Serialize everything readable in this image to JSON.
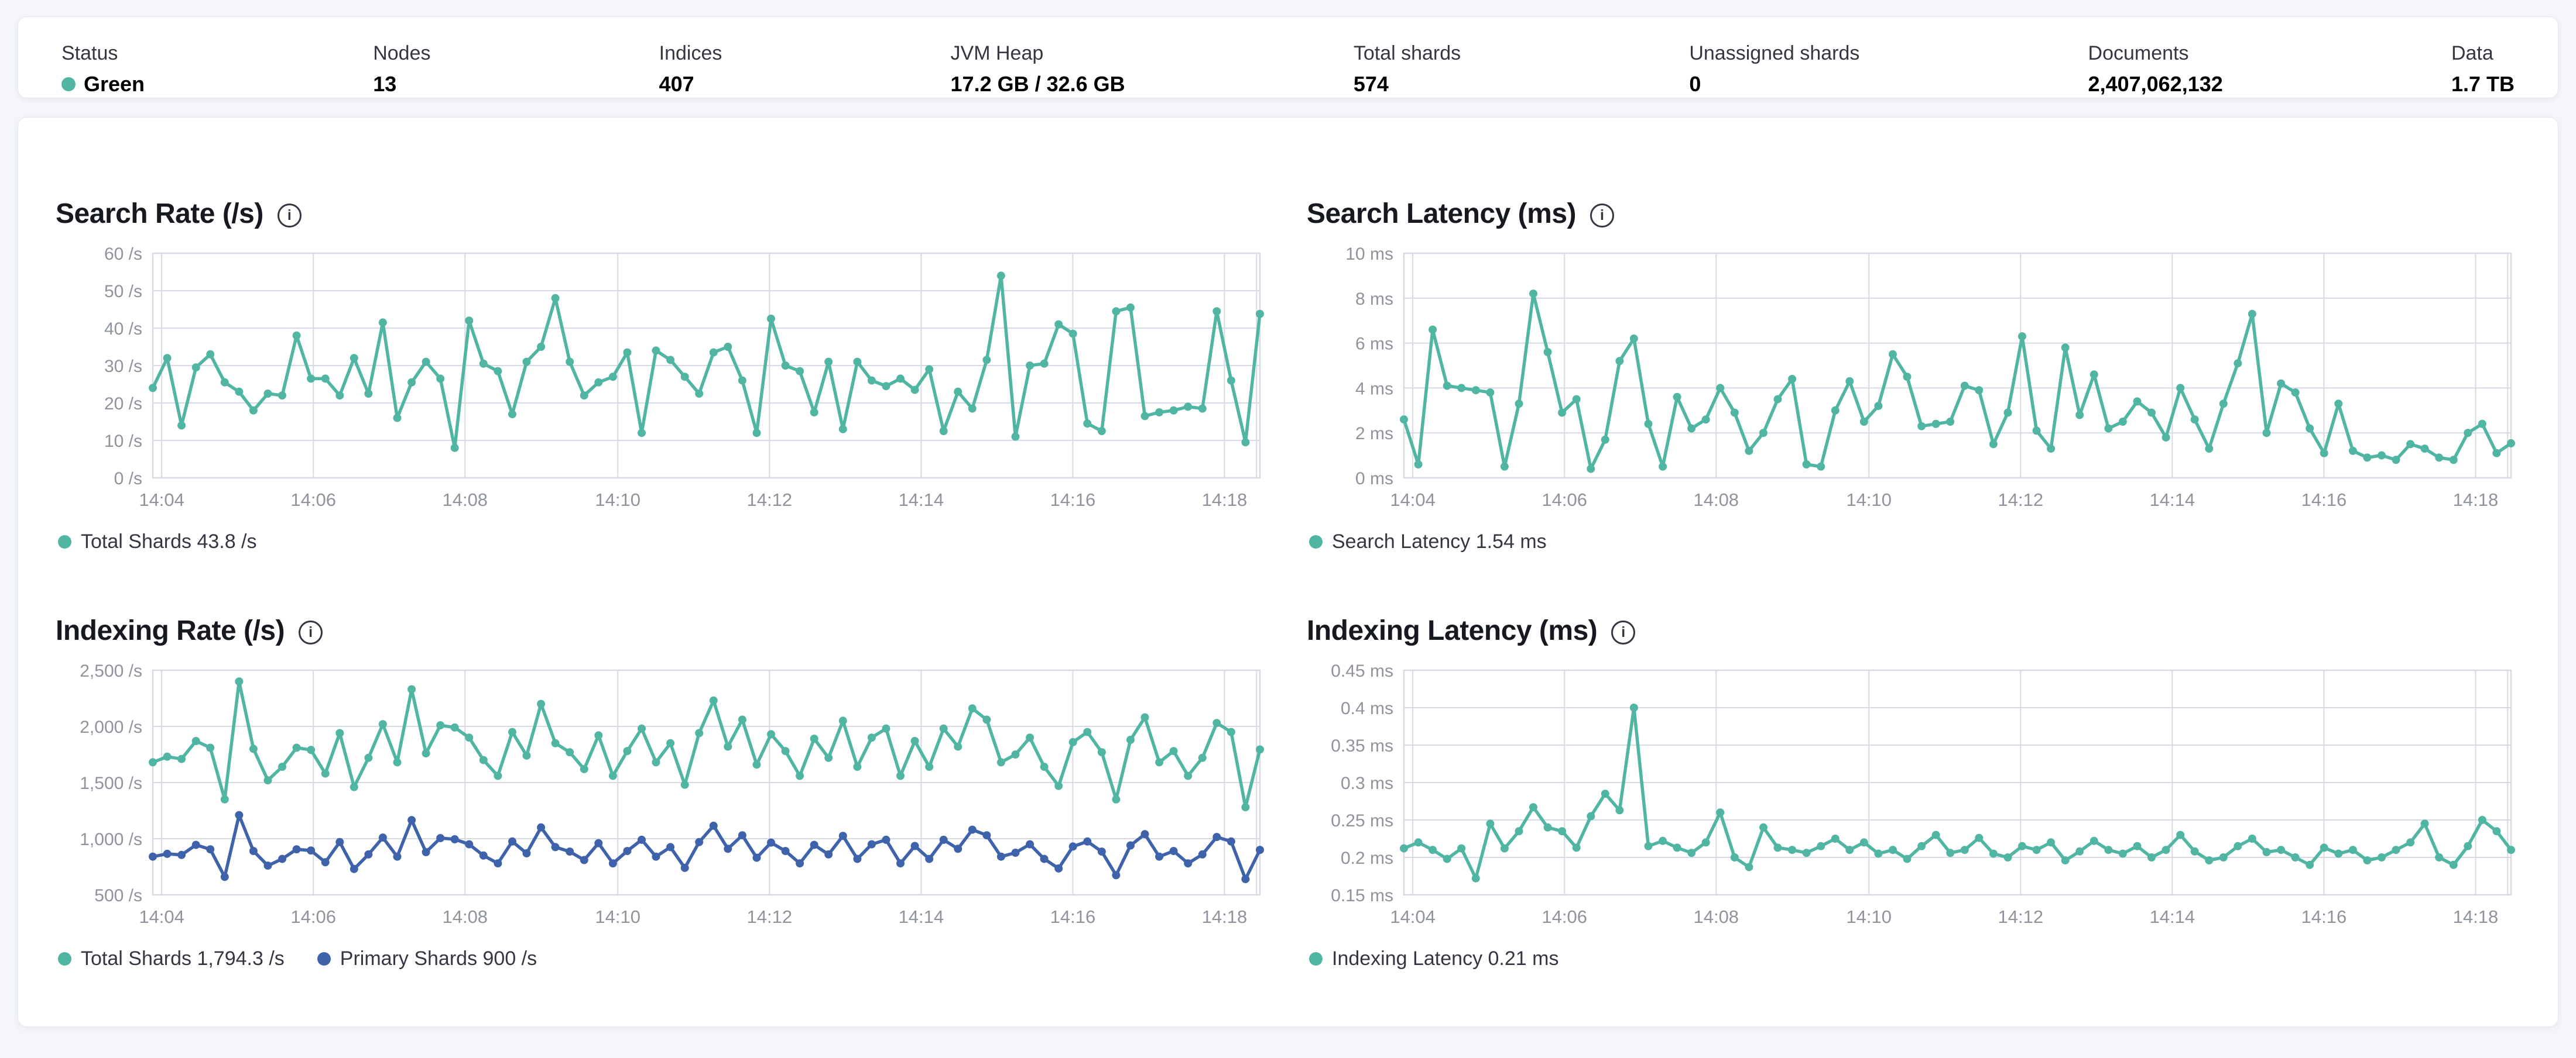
{
  "page": {
    "background": "#f4f6f9"
  },
  "colors": {
    "teal": "#51b5a3",
    "blue": "#3e63aa",
    "grid": "#d6dae2",
    "axis_text": "#8f939c",
    "title_text": "#16191f",
    "label_text": "#343741",
    "card_border": "#e4e8ef"
  },
  "stats": {
    "items": [
      {
        "label": "Status",
        "value": "Green",
        "health_dot": true
      },
      {
        "label": "Nodes",
        "value": "13"
      },
      {
        "label": "Indices",
        "value": "407"
      },
      {
        "label": "JVM Heap",
        "value": "17.2 GB / 32.6 GB"
      },
      {
        "label": "Total shards",
        "value": "574"
      },
      {
        "label": "Unassigned shards",
        "value": "0"
      },
      {
        "label": "Documents",
        "value": "2,407,062,132"
      },
      {
        "label": "Data",
        "value": "1.7 TB"
      }
    ]
  },
  "chart_data": [
    {
      "id": "search-rate",
      "type": "line",
      "title": "Search Rate (/s)",
      "info_icon": "info-circle-icon",
      "ylabel": "/s",
      "ymin": 0,
      "ymax": 60,
      "grid": true,
      "legend_position": "bottom",
      "yticks": [
        {
          "v": 0,
          "label": "0 /s"
        },
        {
          "v": 10,
          "label": "10 /s"
        },
        {
          "v": 20,
          "label": "20 /s"
        },
        {
          "v": 30,
          "label": "30 /s"
        },
        {
          "v": 40,
          "label": "40 /s"
        },
        {
          "v": 50,
          "label": "50 /s"
        },
        {
          "v": 60,
          "label": "60 /s"
        }
      ],
      "xticks": [
        {
          "f": 0.008,
          "label": "14:04"
        },
        {
          "f": 0.145,
          "label": "14:06"
        },
        {
          "f": 0.282,
          "label": "14:08"
        },
        {
          "f": 0.42,
          "label": "14:10"
        },
        {
          "f": 0.557,
          "label": "14:12"
        },
        {
          "f": 0.694,
          "label": "14:14"
        },
        {
          "f": 0.831,
          "label": "14:16"
        },
        {
          "f": 0.968,
          "label": "14:18"
        },
        {
          "f": 0.997,
          "label": ""
        }
      ],
      "series": [
        {
          "name": "Total Shards",
          "color_key": "teal",
          "values": [
            24,
            32,
            14,
            29.5,
            33,
            25.5,
            23,
            18,
            22.5,
            22,
            38,
            26.5,
            26.5,
            22,
            32,
            22.5,
            41.5,
            16,
            25.5,
            31,
            26.5,
            8,
            42,
            30.5,
            28.5,
            17,
            31,
            35,
            48,
            31,
            22,
            25.5,
            27,
            33.5,
            12,
            34,
            31.5,
            27,
            22.5,
            33.5,
            35,
            26,
            12,
            42.5,
            30,
            28.5,
            17.5,
            31,
            13,
            31,
            26,
            24.5,
            26.5,
            23.5,
            29,
            12.5,
            23,
            18.5,
            31.5,
            54,
            11,
            30,
            30.5,
            41,
            38.5,
            14.5,
            12.5,
            44.5,
            45.5,
            16.5,
            17.5,
            18,
            19,
            18.5,
            44.5,
            26,
            9.5,
            43.8
          ]
        }
      ],
      "legend": [
        {
          "color_key": "teal",
          "label": "Total Shards 43.8 /s"
        }
      ]
    },
    {
      "id": "search-latency",
      "type": "line",
      "title": "Search Latency (ms)",
      "info_icon": "info-circle-icon",
      "ylabel": "ms",
      "ymin": 0,
      "ymax": 10,
      "grid": true,
      "legend_position": "bottom",
      "yticks": [
        {
          "v": 0,
          "label": "0 ms"
        },
        {
          "v": 2,
          "label": "2 ms"
        },
        {
          "v": 4,
          "label": "4 ms"
        },
        {
          "v": 6,
          "label": "6 ms"
        },
        {
          "v": 8,
          "label": "8 ms"
        },
        {
          "v": 10,
          "label": "10 ms"
        }
      ],
      "xticks": [
        {
          "f": 0.008,
          "label": "14:04"
        },
        {
          "f": 0.145,
          "label": "14:06"
        },
        {
          "f": 0.282,
          "label": "14:08"
        },
        {
          "f": 0.42,
          "label": "14:10"
        },
        {
          "f": 0.557,
          "label": "14:12"
        },
        {
          "f": 0.694,
          "label": "14:14"
        },
        {
          "f": 0.831,
          "label": "14:16"
        },
        {
          "f": 0.968,
          "label": "14:18"
        },
        {
          "f": 0.997,
          "label": ""
        }
      ],
      "series": [
        {
          "name": "Search Latency",
          "color_key": "teal",
          "values": [
            2.6,
            0.6,
            6.6,
            4.1,
            4.0,
            3.9,
            3.8,
            0.5,
            3.3,
            8.2,
            5.6,
            2.9,
            3.5,
            0.4,
            1.7,
            5.2,
            6.2,
            2.4,
            0.5,
            3.6,
            2.2,
            2.6,
            4.0,
            2.9,
            1.2,
            2.0,
            3.5,
            4.4,
            0.6,
            0.5,
            3.0,
            4.3,
            2.5,
            3.2,
            5.5,
            4.5,
            2.3,
            2.4,
            2.5,
            4.1,
            3.9,
            1.5,
            2.9,
            6.3,
            2.1,
            1.3,
            5.8,
            2.8,
            4.6,
            2.2,
            2.5,
            3.4,
            2.9,
            1.8,
            4.0,
            2.6,
            1.3,
            3.3,
            5.1,
            7.3,
            2.0,
            4.2,
            3.8,
            2.2,
            1.1,
            3.3,
            1.2,
            0.9,
            1.0,
            0.8,
            1.5,
            1.3,
            0.9,
            0.8,
            2.0,
            2.4,
            1.1,
            1.54
          ]
        }
      ],
      "legend": [
        {
          "color_key": "teal",
          "label": "Search Latency 1.54 ms"
        }
      ]
    },
    {
      "id": "indexing-rate",
      "type": "line",
      "title": "Indexing Rate (/s)",
      "info_icon": "info-circle-icon",
      "ylabel": "/s",
      "ymin": 500,
      "ymax": 2500,
      "grid": true,
      "legend_position": "bottom",
      "yticks": [
        {
          "v": 500,
          "label": "500 /s"
        },
        {
          "v": 1000,
          "label": "1,000 /s"
        },
        {
          "v": 1500,
          "label": "1,500 /s"
        },
        {
          "v": 2000,
          "label": "2,000 /s"
        },
        {
          "v": 2500,
          "label": "2,500 /s"
        }
      ],
      "xticks": [
        {
          "f": 0.008,
          "label": "14:04"
        },
        {
          "f": 0.145,
          "label": "14:06"
        },
        {
          "f": 0.282,
          "label": "14:08"
        },
        {
          "f": 0.42,
          "label": "14:10"
        },
        {
          "f": 0.557,
          "label": "14:12"
        },
        {
          "f": 0.694,
          "label": "14:14"
        },
        {
          "f": 0.831,
          "label": "14:16"
        },
        {
          "f": 0.968,
          "label": "14:18"
        },
        {
          "f": 0.997,
          "label": ""
        }
      ],
      "series": [
        {
          "name": "Total Shards",
          "color_key": "teal",
          "values": [
            1680,
            1730,
            1710,
            1870,
            1810,
            1350,
            2400,
            1800,
            1520,
            1640,
            1810,
            1790,
            1580,
            1940,
            1460,
            1720,
            2020,
            1680,
            2330,
            1760,
            2010,
            1990,
            1900,
            1700,
            1560,
            1950,
            1740,
            2200,
            1850,
            1770,
            1620,
            1920,
            1560,
            1780,
            1980,
            1680,
            1850,
            1480,
            1940,
            2230,
            1820,
            2060,
            1660,
            1930,
            1780,
            1560,
            1890,
            1720,
            2050,
            1640,
            1900,
            1980,
            1560,
            1870,
            1640,
            1980,
            1820,
            2160,
            2060,
            1680,
            1750,
            1900,
            1640,
            1470,
            1860,
            1950,
            1770,
            1350,
            1880,
            2080,
            1680,
            1780,
            1560,
            1720,
            2030,
            1950,
            1280,
            1794.3
          ]
        },
        {
          "name": "Primary Shards",
          "color_key": "blue",
          "values": [
            840,
            865,
            855,
            945,
            905,
            660,
            1210,
            890,
            760,
            820,
            905,
            895,
            790,
            970,
            730,
            860,
            1010,
            840,
            1165,
            880,
            1005,
            995,
            950,
            850,
            780,
            975,
            870,
            1100,
            925,
            885,
            810,
            960,
            780,
            890,
            990,
            840,
            925,
            740,
            970,
            1115,
            910,
            1030,
            830,
            965,
            890,
            780,
            945,
            860,
            1025,
            820,
            950,
            990,
            780,
            935,
            820,
            990,
            910,
            1080,
            1030,
            840,
            875,
            950,
            820,
            735,
            930,
            975,
            885,
            675,
            940,
            1040,
            840,
            890,
            780,
            860,
            1015,
            975,
            640,
            900
          ]
        }
      ],
      "legend": [
        {
          "color_key": "teal",
          "label": "Total Shards 1,794.3 /s"
        },
        {
          "color_key": "blue",
          "label": "Primary Shards 900 /s"
        }
      ]
    },
    {
      "id": "indexing-latency",
      "type": "line",
      "title": "Indexing Latency (ms)",
      "info_icon": "info-circle-icon",
      "ylabel": "ms",
      "ymin": 0.15,
      "ymax": 0.45,
      "grid": true,
      "legend_position": "bottom",
      "yticks": [
        {
          "v": 0.15,
          "label": "0.15 ms"
        },
        {
          "v": 0.2,
          "label": "0.2 ms"
        },
        {
          "v": 0.25,
          "label": "0.25 ms"
        },
        {
          "v": 0.3,
          "label": "0.3 ms"
        },
        {
          "v": 0.35,
          "label": "0.35 ms"
        },
        {
          "v": 0.4,
          "label": "0.4 ms"
        },
        {
          "v": 0.45,
          "label": "0.45 ms"
        }
      ],
      "xticks": [
        {
          "f": 0.008,
          "label": "14:04"
        },
        {
          "f": 0.145,
          "label": "14:06"
        },
        {
          "f": 0.282,
          "label": "14:08"
        },
        {
          "f": 0.42,
          "label": "14:10"
        },
        {
          "f": 0.557,
          "label": "14:12"
        },
        {
          "f": 0.694,
          "label": "14:14"
        },
        {
          "f": 0.831,
          "label": "14:16"
        },
        {
          "f": 0.968,
          "label": "14:18"
        },
        {
          "f": 0.997,
          "label": ""
        }
      ],
      "series": [
        {
          "name": "Indexing Latency",
          "color_key": "teal",
          "values": [
            0.212,
            0.22,
            0.21,
            0.198,
            0.212,
            0.172,
            0.245,
            0.212,
            0.235,
            0.267,
            0.24,
            0.235,
            0.213,
            0.255,
            0.285,
            0.263,
            0.4,
            0.215,
            0.222,
            0.213,
            0.206,
            0.22,
            0.26,
            0.2,
            0.187,
            0.24,
            0.213,
            0.21,
            0.206,
            0.215,
            0.225,
            0.21,
            0.22,
            0.205,
            0.21,
            0.198,
            0.215,
            0.23,
            0.206,
            0.21,
            0.226,
            0.205,
            0.2,
            0.215,
            0.21,
            0.22,
            0.196,
            0.208,
            0.222,
            0.21,
            0.205,
            0.215,
            0.2,
            0.21,
            0.23,
            0.208,
            0.196,
            0.2,
            0.215,
            0.225,
            0.207,
            0.21,
            0.2,
            0.19,
            0.213,
            0.205,
            0.21,
            0.196,
            0.2,
            0.21,
            0.22,
            0.245,
            0.2,
            0.19,
            0.215,
            0.25,
            0.235,
            0.21
          ]
        }
      ],
      "legend": [
        {
          "color_key": "teal",
          "label": "Indexing Latency 0.21 ms"
        }
      ]
    }
  ]
}
